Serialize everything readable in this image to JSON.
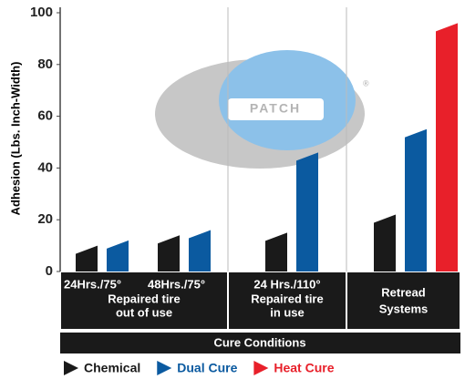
{
  "chart_data": {
    "type": "bar",
    "y_label": "Adhesion (Lbs. Inch-Width)",
    "x_label": "Cure Conditions",
    "watermark": "PATCH",
    "watermark_mark": "®",
    "categories": [
      "24Hrs./75°",
      "48Hrs./75°",
      "24 Hrs./110°",
      null
    ],
    "category_groups": [
      {
        "label": [
          "Repaired tire",
          "out of use"
        ],
        "categories": [
          "24Hrs./75°",
          "48Hrs./75°"
        ]
      },
      {
        "label": [
          "Repaired tire",
          "in use"
        ],
        "categories": [
          "24 Hrs./110°"
        ]
      },
      {
        "label": [
          "Retread",
          "Systems"
        ],
        "categories": [
          null
        ]
      }
    ],
    "series": [
      {
        "name": "Chemical",
        "color": "#1a1a1a",
        "values": [
          10,
          14,
          15,
          22
        ]
      },
      {
        "name": "Dual Cure",
        "color": "#0b5aa0",
        "values": [
          12,
          16,
          46,
          55
        ]
      },
      {
        "name": "Heat Cure",
        "color": "#e8202a",
        "values": [
          null,
          null,
          null,
          96
        ]
      }
    ],
    "ylim": [
      0,
      100
    ],
    "yticks": [
      0,
      20,
      40,
      60,
      80,
      100
    ]
  }
}
